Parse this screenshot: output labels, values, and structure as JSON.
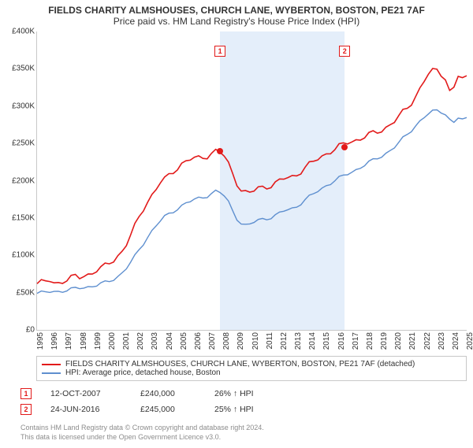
{
  "title_main": "FIELDS CHARITY ALMSHOUSES, CHURCH LANE, WYBERTON, BOSTON, PE21 7AF",
  "title_sub": "Price paid vs. HM Land Registry's House Price Index (HPI)",
  "title_fontsize": 12,
  "chart": {
    "type": "line",
    "background_color": "#ffffff",
    "highlight_color": "#e4eefa",
    "grid_color": "#c8c8c8",
    "x_years": [
      1995,
      1996,
      1997,
      1998,
      1999,
      2000,
      2001,
      2002,
      2003,
      2004,
      2005,
      2006,
      2007,
      2008,
      2009,
      2010,
      2011,
      2012,
      2013,
      2014,
      2015,
      2016,
      2017,
      2018,
      2019,
      2020,
      2021,
      2022,
      2023,
      2024,
      2025
    ],
    "ylim": [
      0,
      400000
    ],
    "ytick_step": 50000,
    "y_tick_labels": [
      "£0",
      "£50K",
      "£100K",
      "£150K",
      "£200K",
      "£250K",
      "£300K",
      "£350K",
      "£400K"
    ],
    "highlight_band": {
      "x_start": 2007.78,
      "x_end": 2016.48
    },
    "series_property": {
      "label": "FIELDS CHARITY ALMSHOUSES, CHURCH LANE, WYBERTON, BOSTON, PE21 7AF (detached)",
      "color": "#e21a1a",
      "line_width": 1.6,
      "values": [
        62000,
        63000,
        64000,
        66000,
        63000,
        64000,
        66000,
        67000,
        69000,
        71000,
        70000,
        73000,
        75000,
        77000,
        80000,
        82000,
        85000,
        89000,
        94000,
        100000,
        106000,
        115000,
        126000,
        138000,
        151000,
        163000,
        173000,
        181000,
        189000,
        197000,
        201000,
        207000,
        213000,
        218000,
        223000,
        226000,
        228000,
        229000,
        230000,
        232000,
        234000,
        237000,
        240000,
        238000,
        232000,
        222000,
        210000,
        198000,
        188000,
        184000,
        183000,
        186000,
        190000,
        192000,
        193000,
        194000,
        196000,
        199000,
        202000,
        204000,
        206000,
        209000,
        213000,
        217000,
        221000,
        225000,
        229000,
        233000,
        237000,
        240000,
        242000,
        245000,
        248000,
        251000,
        253000,
        255000,
        257000,
        259000,
        261000,
        263000,
        265000,
        268000,
        272000,
        276000,
        280000,
        285000,
        291000,
        297000,
        305000,
        314000,
        324000,
        334000,
        342000,
        346000,
        348000,
        344000,
        338000,
        320000,
        325000,
        340000,
        335000,
        338000
      ]
    },
    "series_hpi": {
      "label": "HPI: Average price, detached house, Boston",
      "color": "#5e8fcf",
      "line_width": 1.4,
      "values": [
        49000,
        49500,
        50000,
        51000,
        51500,
        52000,
        52500,
        53000,
        54000,
        55000,
        56000,
        57000,
        58000,
        59000,
        60000,
        61500,
        63000,
        65000,
        68000,
        72000,
        77000,
        83000,
        90000,
        98000,
        107000,
        116000,
        125000,
        133000,
        140000,
        146000,
        151000,
        155000,
        159000,
        163000,
        167000,
        170000,
        172000,
        174000,
        176000,
        178000,
        180000,
        183000,
        186000,
        184000,
        179000,
        171000,
        160000,
        150000,
        143000,
        140000,
        141000,
        144000,
        147000,
        149000,
        150000,
        151000,
        153000,
        156000,
        159000,
        161000,
        163000,
        166000,
        170000,
        174000,
        178000,
        182000,
        186000,
        190000,
        194000,
        197000,
        200000,
        203000,
        206000,
        209000,
        212000,
        215000,
        218000,
        221000,
        224000,
        227000,
        230000,
        233000,
        237000,
        241000,
        245000,
        250000,
        256000,
        262000,
        268000,
        274000,
        280000,
        285000,
        289000,
        292000,
        294000,
        293000,
        290000,
        282000,
        278000,
        284000,
        281000,
        283000
      ]
    },
    "sale_points": [
      {
        "n": "1",
        "x_year": 2007.78,
        "y_value": 240000
      },
      {
        "n": "2",
        "x_year": 2016.48,
        "y_value": 245000
      }
    ],
    "point_marker_color": "#e21a1a",
    "axis_font_size": 10
  },
  "legend": {
    "border_color": "#c8c8c8"
  },
  "sales": [
    {
      "n": "1",
      "date": "12-OCT-2007",
      "price": "£240,000",
      "vs_hpi": "26% ↑ HPI"
    },
    {
      "n": "2",
      "date": "24-JUN-2016",
      "price": "£245,000",
      "vs_hpi": "25% ↑ HPI"
    }
  ],
  "footer_line1": "Contains HM Land Registry data © Crown copyright and database right 2024.",
  "footer_line2": "This data is licensed under the Open Government Licence v3.0."
}
